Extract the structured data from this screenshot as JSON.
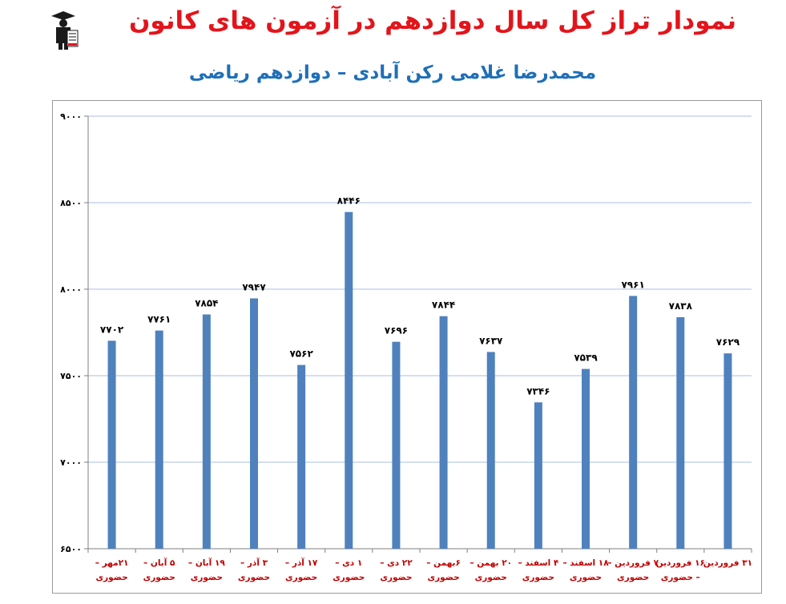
{
  "header": {
    "title": "نمودار تراز کل سال دوازدهم در آزمون های کانون",
    "subtitle": "محمدرضا غلامی رکن آبادی – دوازدهم ریاضی"
  },
  "colors": {
    "title": "#e3141b",
    "subtitle": "#1e6fb8",
    "bar": "#4f81bd",
    "gridline": "#a8bfe0",
    "category_label": "#c00000"
  },
  "logo": {
    "icon": "graduate-figure-icon"
  },
  "chart_data": {
    "type": "bar",
    "title": "",
    "xlabel": "",
    "ylabel": "",
    "ylim": [
      6500,
      9000
    ],
    "yticks": [
      6500,
      7000,
      7500,
      8000,
      8500,
      9000
    ],
    "ytick_labels": [
      "۶۵۰۰",
      "۷۰۰۰",
      "۷۵۰۰",
      "۸۰۰۰",
      "۸۵۰۰",
      "۹۰۰۰"
    ],
    "grid": true,
    "legend": "none",
    "categories": [
      [
        "۲۱مهر –",
        "حضوری"
      ],
      [
        "۵ آبان –",
        "حضوری"
      ],
      [
        "۱۹ آبان –",
        "حضوری"
      ],
      [
        "۳ آذر –",
        "حضوری"
      ],
      [
        "۱۷ آذر –",
        "حضوری"
      ],
      [
        "۱ دی –",
        "حضوری"
      ],
      [
        "۲۲ دی –",
        "حضوری"
      ],
      [
        "۶بهمن –",
        "حضوری"
      ],
      [
        "۲۰ بهمن –",
        "حضوری"
      ],
      [
        "۴ اسفند –",
        "حضوری"
      ],
      [
        "۱۸ اسفند –",
        "حضوری"
      ],
      [
        "۷ فروردین –",
        "حضوری"
      ],
      [
        "۱۶ فروردین",
        "– حضوری"
      ],
      [
        "۳۱ فروردین",
        ""
      ]
    ],
    "values": [
      7702,
      7761,
      7854,
      7947,
      7562,
      8446,
      7696,
      7844,
      7637,
      7346,
      7539,
      7961,
      7838,
      7629
    ],
    "value_labels": [
      "۷۷۰۲",
      "۷۷۶۱",
      "۷۸۵۴",
      "۷۹۴۷",
      "۷۵۶۲",
      "۸۴۴۶",
      "۷۶۹۶",
      "۷۸۴۴",
      "۷۶۳۷",
      "۷۳۴۶",
      "۷۵۳۹",
      "۷۹۶۱",
      "۷۸۳۸",
      "۷۶۲۹"
    ]
  }
}
